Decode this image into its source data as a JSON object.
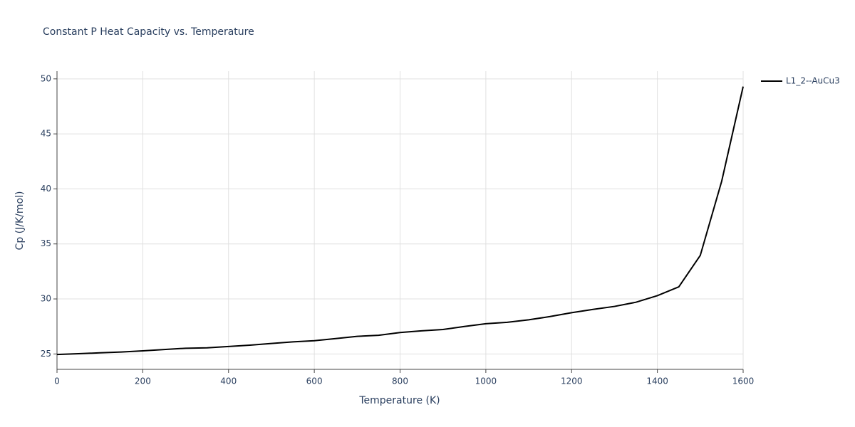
{
  "chart_data": {
    "type": "line",
    "title": "Constant P Heat Capacity vs. Temperature",
    "x_label": "Temperature (K)",
    "y_label": "Cp (J/K/mol)",
    "x": [
      0,
      50,
      100,
      150,
      200,
      250,
      300,
      350,
      400,
      450,
      500,
      550,
      600,
      650,
      700,
      750,
      800,
      850,
      900,
      950,
      1000,
      1050,
      1100,
      1150,
      1200,
      1250,
      1300,
      1350,
      1400,
      1450,
      1500,
      1550,
      1600
    ],
    "series": [
      {
        "name": "L1_2--AuCu3",
        "color": "#000000",
        "values": [
          24.95,
          25.02,
          25.1,
          25.18,
          25.28,
          25.4,
          25.52,
          25.56,
          25.68,
          25.8,
          25.95,
          26.1,
          26.2,
          26.4,
          26.6,
          26.7,
          26.95,
          27.1,
          27.22,
          27.5,
          27.75,
          27.88,
          28.1,
          28.4,
          28.75,
          29.05,
          29.32,
          29.7,
          30.3,
          31.1,
          33.95,
          40.7,
          49.3
        ]
      }
    ],
    "xlim": [
      0,
      1600
    ],
    "xticks": [
      0,
      200,
      400,
      600,
      800,
      1000,
      1200,
      1400,
      1600
    ],
    "ylim": [
      23.6,
      50.7
    ],
    "yticks": [
      25,
      30,
      35,
      40,
      45,
      50
    ],
    "grid": true,
    "legend": "right"
  }
}
